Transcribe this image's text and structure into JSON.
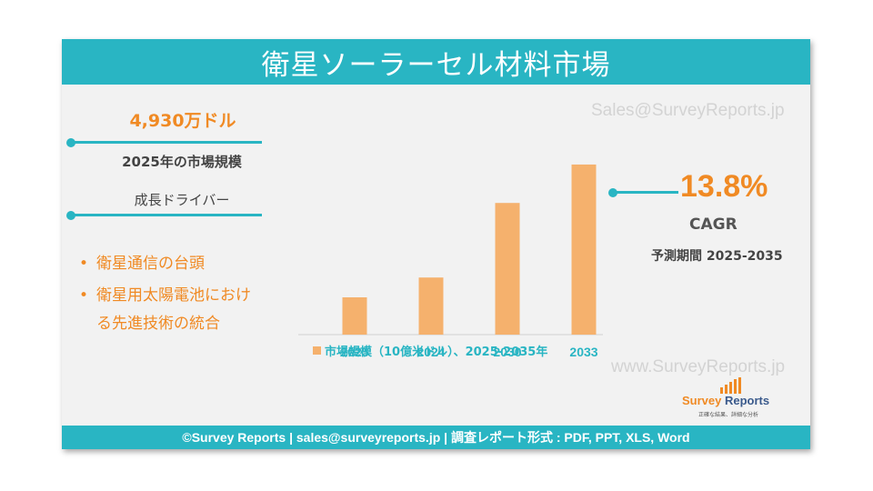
{
  "header": {
    "title": "衛星ソーラーセル材料市場"
  },
  "watermarks": {
    "top": "Sales@SurveyReports.jp",
    "bottom": "www.SurveyReports.jp"
  },
  "market": {
    "value": "4,930万ドル",
    "caption": "2025年の市場規模"
  },
  "drivers": {
    "title": "成長ドライバー",
    "items": [
      "衛星通信の台頭",
      "衛星用太陽電池における先進技術の統合"
    ]
  },
  "cagr": {
    "value": "13.8%",
    "label": "CAGR",
    "forecast": "予測期間 2025-2035"
  },
  "legend": {
    "label": "市場規模（10億米ドル）、2025-2035年"
  },
  "logo": {
    "name_part1": "Survey",
    "name_part2": "Reports",
    "tagline": "正確な結果、詳細な分析"
  },
  "footer": {
    "text": "©Survey Reports | sales@surveyreports.jp |  調査レポート形式 : PDF, PPT, XLS, Word"
  },
  "colors": {
    "accent": "#29b5c3",
    "orange": "#f08a24",
    "bar": "#f5b16d",
    "background": "#f2f2f2"
  },
  "chart_data": {
    "type": "bar",
    "categories": [
      "2023",
      "2024",
      "2030",
      "2033"
    ],
    "values": [
      0.032,
      0.049,
      0.113,
      0.146
    ],
    "ylim": [
      0,
      0.16
    ],
    "legend_position": "bottom",
    "grid": false
  }
}
